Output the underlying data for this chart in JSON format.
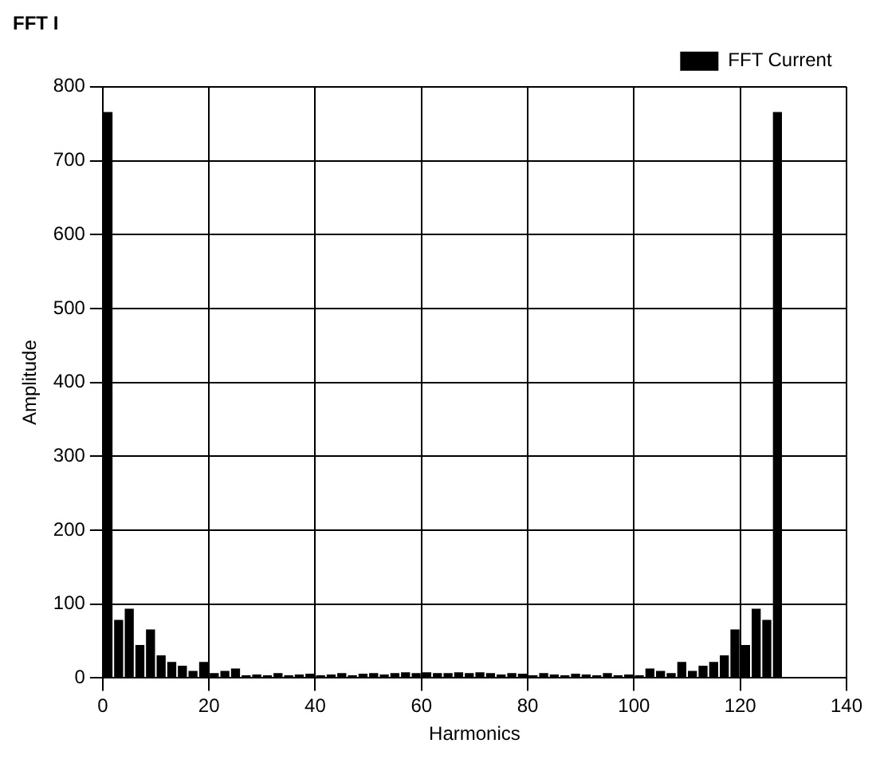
{
  "chart_data": {
    "type": "bar",
    "title": "FFT I",
    "xlabel": "Harmonics",
    "ylabel": "Amplitude",
    "x": [
      1,
      3,
      5,
      7,
      9,
      11,
      13,
      15,
      17,
      19,
      21,
      23,
      25,
      27,
      29,
      31,
      33,
      35,
      37,
      39,
      41,
      43,
      45,
      47,
      49,
      51,
      53,
      55,
      57,
      59,
      61,
      63,
      65,
      67,
      69,
      71,
      73,
      75,
      77,
      79,
      81,
      83,
      85,
      87,
      89,
      91,
      93,
      95,
      97,
      99,
      101,
      103,
      105,
      107,
      109,
      111,
      113,
      115,
      117,
      119,
      121,
      123,
      125,
      127
    ],
    "series": [
      {
        "name": "FFT Current",
        "color": "#000000",
        "values": [
          765,
          78,
          93,
          44,
          65,
          30,
          21,
          16,
          9,
          21,
          6,
          9,
          12,
          3,
          4,
          3,
          6,
          3,
          4,
          5,
          3,
          4,
          6,
          3,
          5,
          6,
          4,
          6,
          7,
          6,
          7,
          6,
          6,
          7,
          6,
          7,
          6,
          4,
          6,
          5,
          3,
          6,
          4,
          3,
          5,
          4,
          3,
          6,
          3,
          4,
          3,
          12,
          9,
          6,
          21,
          9,
          16,
          21,
          30,
          65,
          44,
          93,
          78,
          765
        ]
      }
    ],
    "xlim": [
      0,
      140
    ],
    "xticks": [
      0,
      20,
      40,
      60,
      80,
      100,
      120,
      140
    ],
    "ylim": [
      0,
      800
    ],
    "yticks": [
      0,
      100,
      200,
      300,
      400,
      500,
      600,
      700,
      800
    ],
    "grid": true,
    "legend": "top right"
  }
}
